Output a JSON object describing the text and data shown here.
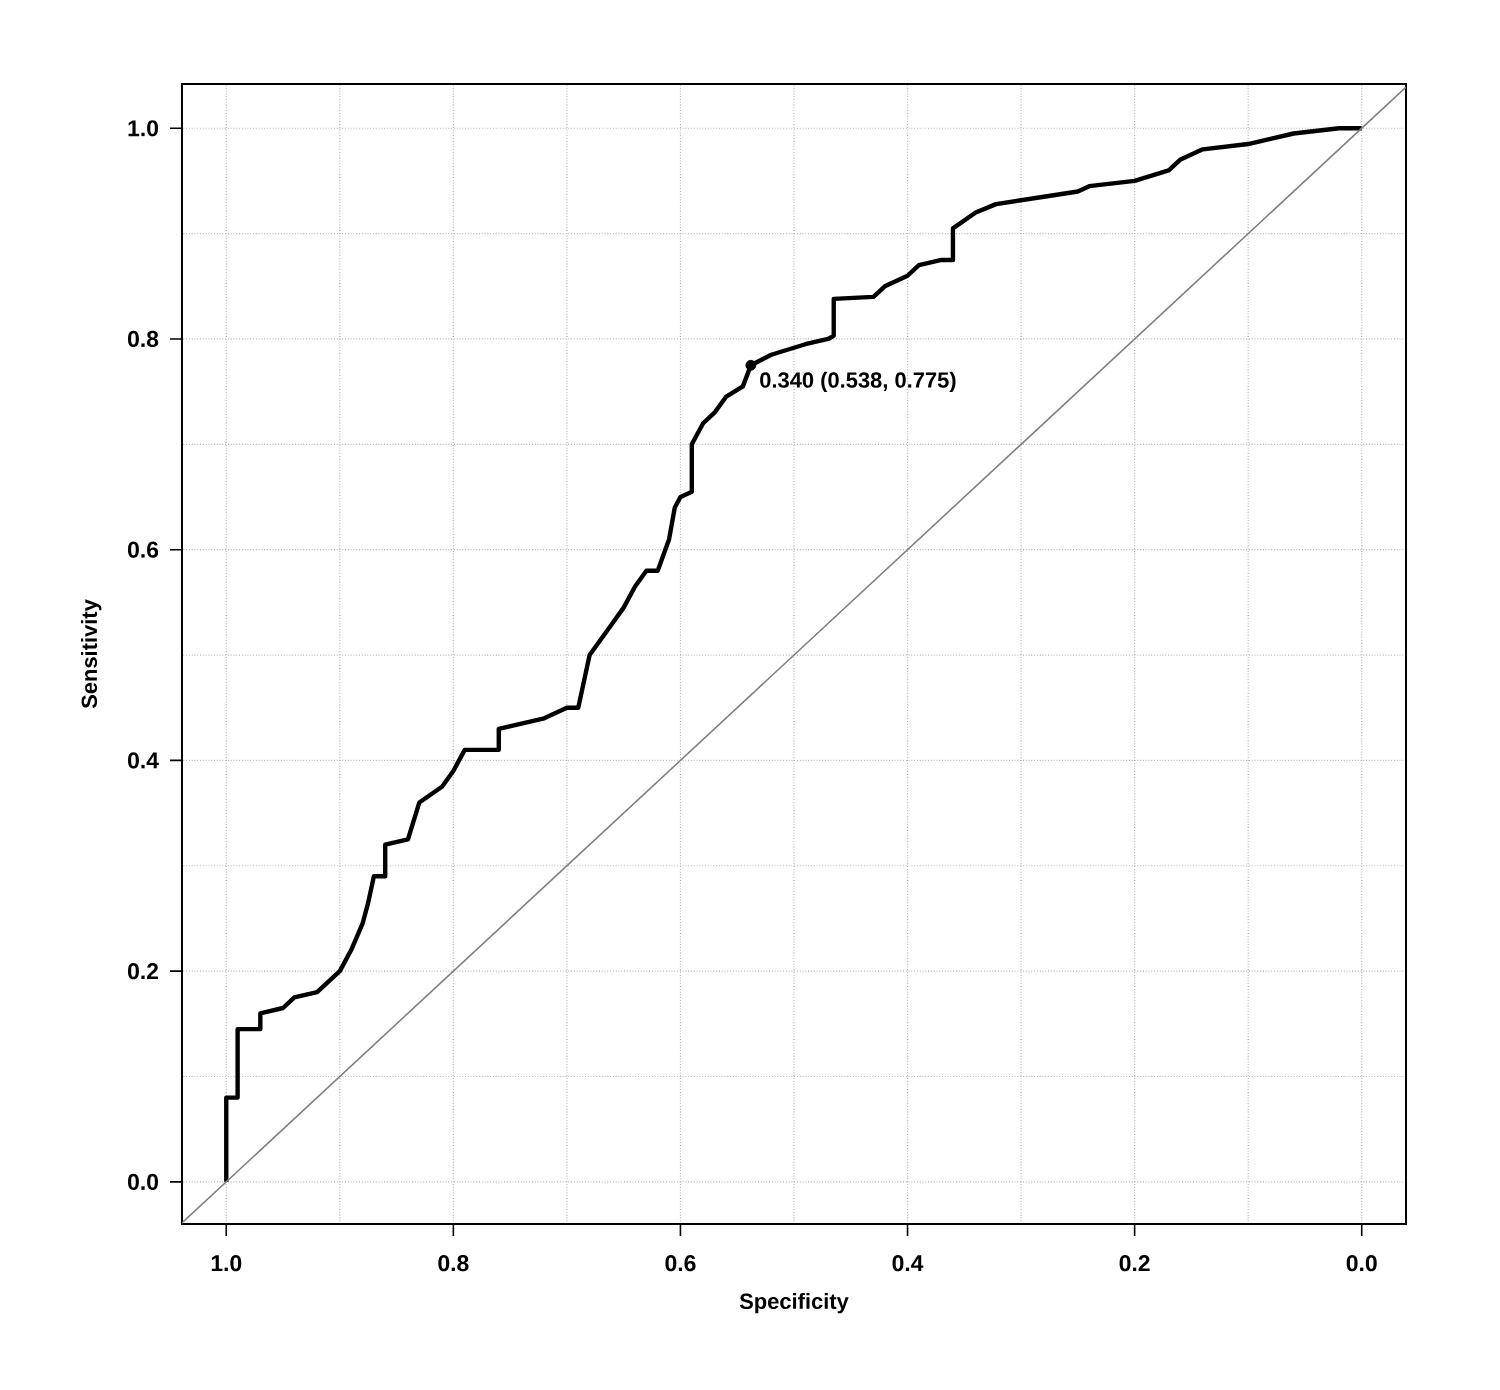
{
  "chart_data": {
    "type": "line",
    "xlabel": "Specificity",
    "ylabel": "Sensitivity",
    "xlim": [
      1.039,
      -0.039
    ],
    "ylim": [
      -0.04,
      1.042
    ],
    "xticks": [
      {
        "value": 1,
        "label": "1.0"
      },
      0.8,
      0.6,
      0.4,
      0.2,
      {
        "value": 0,
        "label": "0.0"
      }
    ],
    "yticks": [
      {
        "value": 0,
        "label": "0.0"
      },
      0.2,
      0.4,
      0.6,
      0.8,
      {
        "value": 1,
        "label": "1.0"
      }
    ],
    "grid": true,
    "series": [
      {
        "color": "#000000",
        "line_style": "solid",
        "x": [
          1.0,
          1.0,
          0.99,
          0.99,
          0.97,
          0.97,
          0.95,
          0.94,
          0.92,
          0.9,
          0.89,
          0.88,
          0.875,
          0.87,
          0.86,
          0.86,
          0.84,
          0.83,
          0.81,
          0.8,
          0.79,
          0.76,
          0.76,
          0.74,
          0.72,
          0.7,
          0.69,
          0.685,
          0.68,
          0.67,
          0.66,
          0.65,
          0.64,
          0.63,
          0.62,
          0.61,
          0.605,
          0.6,
          0.59,
          0.59,
          0.58,
          0.57,
          0.56,
          0.545,
          0.538,
          0.52,
          0.49,
          0.47,
          0.465,
          0.465,
          0.43,
          0.42,
          0.4,
          0.39,
          0.37,
          0.36,
          0.36,
          0.34,
          0.322,
          0.28,
          0.25,
          0.24,
          0.2,
          0.17,
          0.16,
          0.14,
          0.1,
          0.06,
          0.02,
          0.0
        ],
        "values": [
          0.0,
          0.08,
          0.08,
          0.145,
          0.145,
          0.16,
          0.165,
          0.175,
          0.18,
          0.2,
          0.22,
          0.245,
          0.265,
          0.29,
          0.29,
          0.32,
          0.325,
          0.36,
          0.375,
          0.39,
          0.41,
          0.41,
          0.43,
          0.435,
          0.44,
          0.45,
          0.45,
          0.475,
          0.5,
          0.515,
          0.53,
          0.545,
          0.565,
          0.58,
          0.58,
          0.61,
          0.64,
          0.65,
          0.655,
          0.7,
          0.72,
          0.73,
          0.745,
          0.755,
          0.775,
          0.785,
          0.795,
          0.8,
          0.803,
          0.838,
          0.84,
          0.85,
          0.86,
          0.87,
          0.875,
          0.875,
          0.905,
          0.92,
          0.928,
          0.935,
          0.94,
          0.945,
          0.95,
          0.96,
          0.97,
          0.98,
          0.985,
          0.995,
          1.0,
          1.0
        ]
      },
      {
        "color": "#808080",
        "line_style": "solid",
        "x": [
          1.039,
          -0.039
        ],
        "values": [
          -0.039,
          1.039
        ]
      },
      {
        "type": "scatter",
        "color": "#000000",
        "marker": "circle",
        "x": [
          0.538
        ],
        "values": [
          0.775
        ]
      }
    ],
    "annotations": [
      {
        "text": "0.340 (0.538, 0.775)",
        "x": 0.538,
        "y": 0.775
      }
    ]
  }
}
